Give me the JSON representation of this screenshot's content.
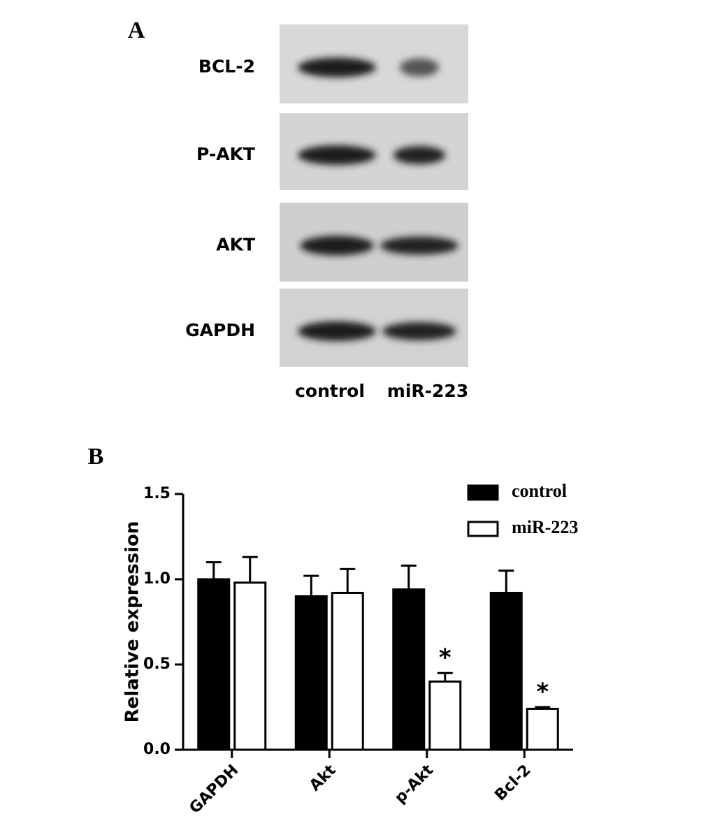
{
  "panel_a": {
    "label": "A",
    "rows": [
      "BCL-2",
      "P-AKT",
      "AKT",
      "GAPDH"
    ],
    "lanes": [
      "control",
      "miR-223"
    ]
  },
  "chart_data": {
    "type": "bar",
    "panel_label": "B",
    "ylabel": "Relative expression",
    "categories": [
      "GAPDH",
      "Akt",
      "p-Akt",
      "Bcl-2"
    ],
    "series": [
      {
        "name": "control",
        "color": "#000000",
        "values": [
          1.0,
          0.9,
          0.94,
          0.92
        ],
        "errors": [
          0.1,
          0.12,
          0.14,
          0.13
        ],
        "annotations": [
          null,
          null,
          null,
          null
        ]
      },
      {
        "name": "miR-223",
        "color": "#ffffff",
        "values": [
          0.98,
          0.92,
          0.4,
          0.24
        ],
        "errors": [
          0.15,
          0.14,
          0.05,
          0.01
        ],
        "annotations": [
          null,
          null,
          "*",
          "*"
        ]
      }
    ],
    "ylim": [
      0,
      1.5
    ],
    "yticks": [
      {
        "value": 0,
        "label": "0.0"
      },
      {
        "value": 0.5,
        "label": "0.5"
      },
      {
        "value": 1,
        "label": "1.0"
      },
      {
        "value": 1.5,
        "label": "1.5"
      }
    ]
  }
}
